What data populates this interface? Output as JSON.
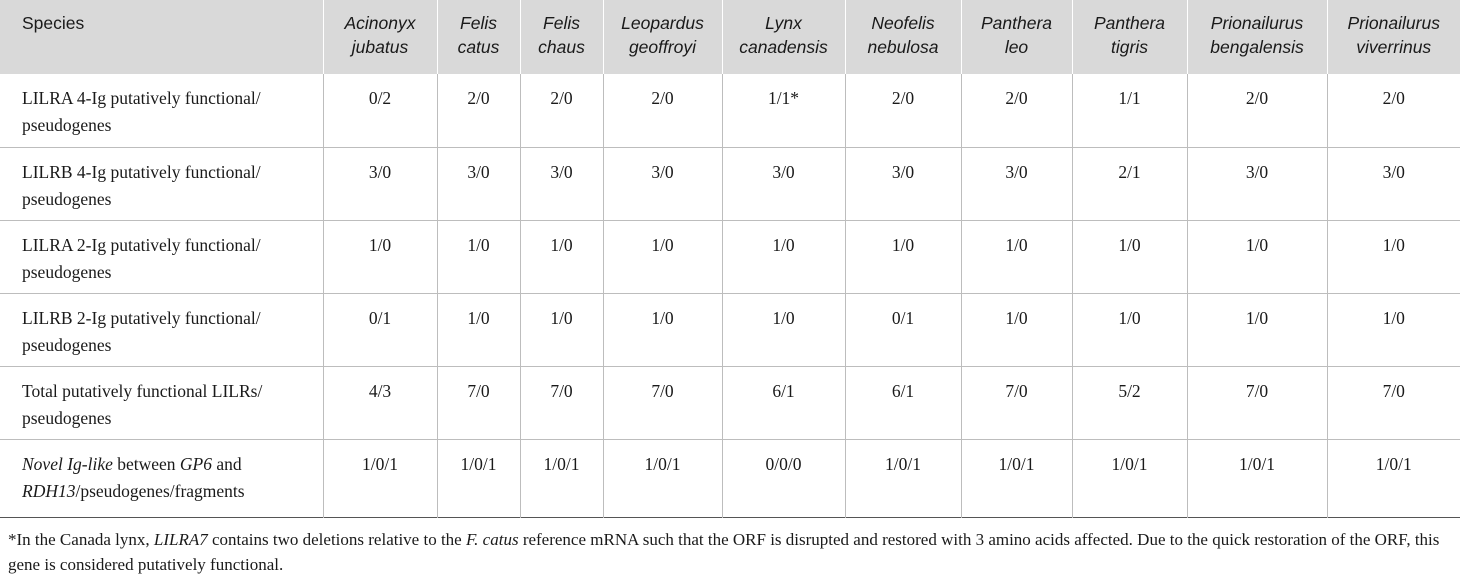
{
  "table": {
    "headers": [
      {
        "label_lines": [
          "Species"
        ]
      },
      {
        "label_lines": [
          "Acinonyx",
          "jubatus"
        ]
      },
      {
        "label_lines": [
          "Felis",
          "catus"
        ]
      },
      {
        "label_lines": [
          "Felis",
          "chaus"
        ]
      },
      {
        "label_lines": [
          "Leopardus",
          "geoffroyi"
        ]
      },
      {
        "label_lines": [
          "Lynx",
          "canadensis"
        ]
      },
      {
        "label_lines": [
          "Neofelis",
          "nebulosa"
        ]
      },
      {
        "label_lines": [
          "Panthera",
          "leo"
        ]
      },
      {
        "label_lines": [
          "Panthera",
          "tigris"
        ]
      },
      {
        "label_lines": [
          "Prionailurus",
          "bengalensis"
        ]
      },
      {
        "label_lines": [
          "Prionailurus",
          "viverrinus"
        ]
      }
    ],
    "rows": [
      {
        "label_parts": [
          {
            "text": "LILRA 4-Ig putatively functional/",
            "italic": false,
            "br": true
          },
          {
            "text": "pseudogenes",
            "italic": false,
            "br": false
          }
        ],
        "values": [
          "0/2",
          "2/0",
          "2/0",
          "2/0",
          "1/1*",
          "2/0",
          "2/0",
          "1/1",
          "2/0",
          "2/0"
        ]
      },
      {
        "label_parts": [
          {
            "text": "LILRB 4-Ig putatively functional/",
            "italic": false,
            "br": true
          },
          {
            "text": "pseudogenes",
            "italic": false,
            "br": false
          }
        ],
        "values": [
          "3/0",
          "3/0",
          "3/0",
          "3/0",
          "3/0",
          "3/0",
          "3/0",
          "2/1",
          "3/0",
          "3/0"
        ]
      },
      {
        "label_parts": [
          {
            "text": "LILRA 2-Ig putatively functional/",
            "italic": false,
            "br": true
          },
          {
            "text": "pseudogenes",
            "italic": false,
            "br": false
          }
        ],
        "values": [
          "1/0",
          "1/0",
          "1/0",
          "1/0",
          "1/0",
          "1/0",
          "1/0",
          "1/0",
          "1/0",
          "1/0"
        ]
      },
      {
        "label_parts": [
          {
            "text": "LILRB 2-Ig putatively functional/",
            "italic": false,
            "br": true
          },
          {
            "text": "pseudogenes",
            "italic": false,
            "br": false
          }
        ],
        "values": [
          "0/1",
          "1/0",
          "1/0",
          "1/0",
          "1/0",
          "0/1",
          "1/0",
          "1/0",
          "1/0",
          "1/0"
        ]
      },
      {
        "label_parts": [
          {
            "text": "Total putatively functional LILRs/",
            "italic": false,
            "br": true
          },
          {
            "text": "pseudogenes",
            "italic": false,
            "br": false
          }
        ],
        "values": [
          "4/3",
          "7/0",
          "7/0",
          "7/0",
          "6/1",
          "6/1",
          "7/0",
          "5/2",
          "7/0",
          "7/0"
        ]
      },
      {
        "label_parts": [
          {
            "text": "Novel Ig-like",
            "italic": true,
            "br": false
          },
          {
            "text": " between ",
            "italic": false,
            "br": false
          },
          {
            "text": "GP6",
            "italic": true,
            "br": false
          },
          {
            "text": " and",
            "italic": false,
            "br": true
          },
          {
            "text": "RDH13",
            "italic": true,
            "br": false
          },
          {
            "text": "/pseudogenes/fragments",
            "italic": false,
            "br": false
          }
        ],
        "values": [
          "1/0/1",
          "1/0/1",
          "1/0/1",
          "1/0/1",
          "0/0/0",
          "1/0/1",
          "1/0/1",
          "1/0/1",
          "1/0/1",
          "1/0/1"
        ]
      }
    ]
  },
  "footnote": {
    "parts": [
      {
        "text": "*In the Canada lynx, ",
        "italic": false
      },
      {
        "text": "LILRA7",
        "italic": true
      },
      {
        "text": " contains two deletions relative to the ",
        "italic": false
      },
      {
        "text": "F. catus",
        "italic": true
      },
      {
        "text": " reference mRNA such that the ORF is disrupted and restored with 3 amino acids affected. Due to the quick restoration of the ORF, this gene is considered putatively functional.",
        "italic": false
      }
    ]
  }
}
